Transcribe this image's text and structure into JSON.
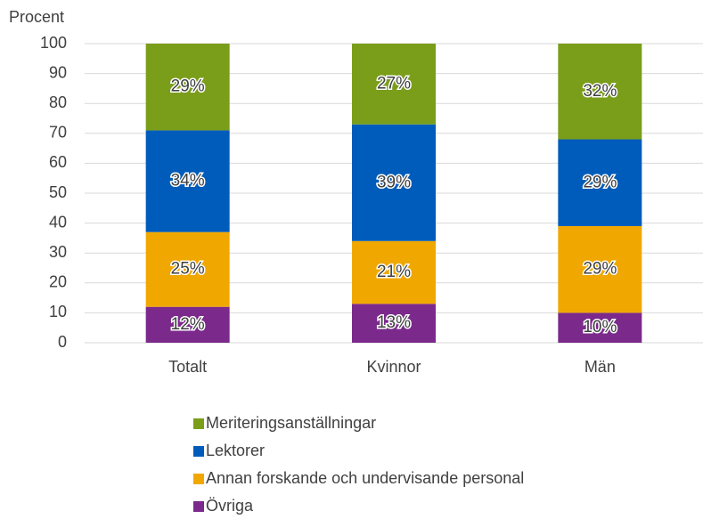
{
  "chart_data": {
    "type": "stacked_bar",
    "y_label": "Procent",
    "categories": [
      "Totalt",
      "Kvinnor",
      "Män"
    ],
    "series": [
      {
        "name": "Övriga",
        "color": "#7b2a8c",
        "values": [
          12,
          13,
          10
        ],
        "value_labels": [
          "12%",
          "13%",
          "10%"
        ]
      },
      {
        "name": "Annan forskande och undervisande personal",
        "color": "#f0a800",
        "values": [
          25,
          21,
          29
        ],
        "value_labels": [
          "25%",
          "21%",
          "29%"
        ]
      },
      {
        "name": "Lektorer",
        "color": "#005cbb",
        "values": [
          34,
          39,
          29
        ],
        "value_labels": [
          "34%",
          "39%",
          "29%"
        ]
      },
      {
        "name": "Meriteringsanställningar",
        "color": "#7a9e1a",
        "values": [
          29,
          27,
          32
        ],
        "value_labels": [
          "29%",
          "27%",
          "32%"
        ]
      }
    ],
    "ylim": [
      0,
      100
    ],
    "yticks": [
      0,
      10,
      20,
      30,
      40,
      50,
      60,
      70,
      80,
      90,
      100
    ],
    "grid": true
  }
}
